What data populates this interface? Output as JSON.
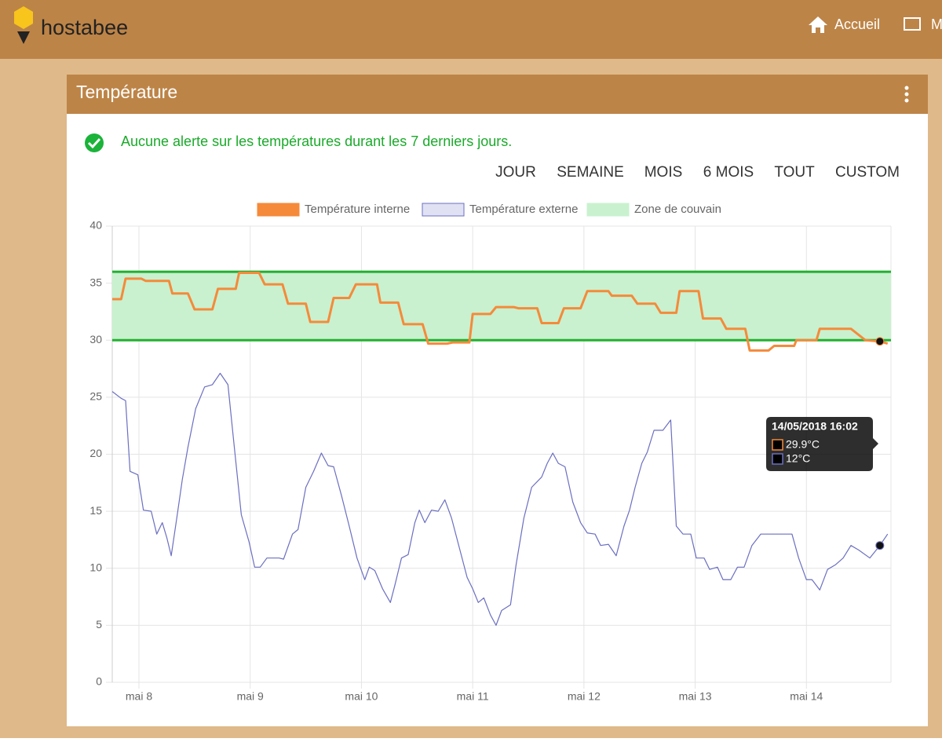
{
  "header": {
    "brand": "hostabee",
    "nav": [
      "Accueil",
      "M"
    ]
  },
  "card": {
    "title": "Température",
    "alert": "Aucune alerte sur les températures durant les 7 derniers jours.",
    "ranges": [
      "JOUR",
      "SEMAINE",
      "MOIS",
      "6 MOIS",
      "TOUT",
      "CUSTOM"
    ]
  },
  "chart_data": {
    "type": "line",
    "xlim": [
      7.76,
      14.76
    ],
    "xticks": [
      {
        "value": 8,
        "label": "mai 8"
      },
      {
        "value": 9,
        "label": "mai 9"
      },
      {
        "value": 10,
        "label": "mai 10"
      },
      {
        "value": 11,
        "label": "mai 11"
      },
      {
        "value": 12,
        "label": "mai 12"
      },
      {
        "value": 13,
        "label": "mai 13"
      },
      {
        "value": 14,
        "label": "mai 14"
      }
    ],
    "ylim": [
      0,
      40
    ],
    "yticks": [
      0,
      5,
      10,
      15,
      20,
      25,
      30,
      35,
      40
    ],
    "grid": true,
    "series": [
      {
        "name": "Température interne",
        "color": "#f58a3a",
        "x": [
          7.76,
          7.84,
          7.88,
          8.02,
          8.06,
          8.27,
          8.3,
          8.44,
          8.5,
          8.66,
          8.71,
          8.87,
          8.9,
          9.08,
          9.13,
          9.29,
          9.34,
          9.5,
          9.54,
          9.7,
          9.75,
          9.89,
          9.95,
          10.14,
          10.17,
          10.33,
          10.38,
          10.55,
          10.6,
          10.77,
          10.82,
          10.97,
          11.0,
          11.16,
          11.21,
          11.37,
          11.41,
          11.58,
          11.62,
          11.77,
          11.82,
          11.97,
          12.03,
          12.22,
          12.25,
          12.43,
          12.48,
          12.64,
          12.69,
          12.83,
          12.86,
          13.03,
          13.07,
          13.23,
          13.28,
          13.45,
          13.49,
          13.66,
          13.71,
          13.89,
          13.91,
          14.09,
          14.12,
          14.4,
          14.53,
          14.66,
          14.73
        ],
        "values": [
          33.6,
          33.6,
          35.4,
          35.4,
          35.2,
          35.2,
          34.1,
          34.1,
          32.7,
          32.7,
          34.5,
          34.5,
          35.9,
          35.9,
          34.9,
          34.9,
          33.2,
          33.2,
          31.6,
          31.6,
          33.7,
          33.7,
          34.9,
          34.9,
          33.3,
          33.3,
          31.4,
          31.4,
          29.7,
          29.7,
          29.8,
          29.8,
          32.3,
          32.3,
          32.9,
          32.9,
          32.8,
          32.8,
          31.5,
          31.5,
          32.8,
          32.8,
          34.3,
          34.3,
          33.9,
          33.9,
          33.2,
          33.2,
          32.4,
          32.4,
          34.3,
          34.3,
          31.9,
          31.9,
          31.0,
          31.0,
          29.1,
          29.1,
          29.5,
          29.5,
          30.0,
          30.0,
          31.0,
          31.0,
          30.0,
          29.9,
          29.7
        ]
      },
      {
        "name": "Température externe",
        "color": "#6b6fc0",
        "x": [
          7.76,
          7.84,
          7.88,
          7.92,
          7.99,
          8.04,
          8.11,
          8.16,
          8.21,
          8.25,
          8.29,
          8.34,
          8.39,
          8.44,
          8.51,
          8.59,
          8.66,
          8.73,
          8.8,
          8.85,
          8.92,
          8.99,
          9.04,
          9.09,
          9.15,
          9.26,
          9.3,
          9.38,
          9.43,
          9.5,
          9.57,
          9.64,
          9.7,
          9.75,
          9.82,
          9.89,
          9.96,
          10.03,
          10.07,
          10.12,
          10.19,
          10.26,
          10.3,
          10.36,
          10.42,
          10.48,
          10.52,
          10.57,
          10.63,
          10.69,
          10.75,
          10.81,
          10.88,
          10.95,
          11.0,
          11.05,
          11.1,
          11.16,
          11.21,
          11.26,
          11.34,
          11.39,
          11.46,
          11.53,
          11.62,
          11.67,
          11.72,
          11.77,
          11.83,
          11.9,
          11.97,
          12.03,
          12.1,
          12.15,
          12.22,
          12.29,
          12.36,
          12.41,
          12.46,
          12.52,
          12.57,
          12.63,
          12.71,
          12.78,
          12.83,
          12.89,
          12.96,
          13.01,
          13.08,
          13.13,
          13.2,
          13.25,
          13.32,
          13.38,
          13.44,
          13.51,
          13.59,
          13.8,
          13.87,
          13.93,
          14.0,
          14.05,
          14.12,
          14.19,
          14.26,
          14.33,
          14.4,
          14.47,
          14.57,
          14.66,
          14.73
        ],
        "values": [
          25.5,
          24.9,
          24.7,
          18.5,
          18.2,
          15.1,
          15.0,
          13.0,
          14.0,
          12.7,
          11.1,
          14.4,
          17.8,
          20.6,
          24.0,
          25.9,
          26.1,
          27.1,
          26.1,
          21.3,
          14.7,
          12.3,
          10.1,
          10.1,
          10.9,
          10.9,
          10.8,
          13.0,
          13.4,
          17.1,
          18.5,
          20.1,
          19.0,
          18.9,
          16.4,
          13.7,
          10.9,
          9.0,
          10.1,
          9.8,
          8.2,
          7.0,
          8.5,
          10.9,
          11.2,
          14.0,
          15.1,
          14.0,
          15.1,
          15.0,
          16.0,
          14.4,
          11.8,
          9.2,
          8.2,
          7.0,
          7.4,
          5.9,
          5.0,
          6.3,
          6.8,
          10.3,
          14.4,
          17.1,
          18.0,
          19.2,
          20.1,
          19.2,
          18.9,
          15.8,
          14.0,
          13.1,
          13.0,
          12.0,
          12.1,
          11.1,
          13.7,
          15.1,
          17.1,
          19.2,
          20.2,
          22.1,
          22.1,
          23.0,
          13.7,
          13.0,
          13.0,
          10.9,
          10.9,
          9.9,
          10.1,
          9.0,
          9.0,
          10.1,
          10.1,
          12.0,
          13.0,
          13.0,
          13.0,
          10.9,
          9.0,
          9.0,
          8.1,
          9.9,
          10.3,
          10.9,
          12.0,
          11.6,
          10.9,
          12.0,
          13.0
        ]
      }
    ],
    "zone": {
      "name": "Zone de couvain",
      "color": "#22b030",
      "fill": "#c9f1cf",
      "low": 30,
      "high": 36
    },
    "tooltip": {
      "title": "14/05/2018 16:02",
      "x": 14.66,
      "values": [
        29.9,
        12
      ],
      "value_labels": [
        "29.9°C",
        "12°C"
      ]
    }
  }
}
